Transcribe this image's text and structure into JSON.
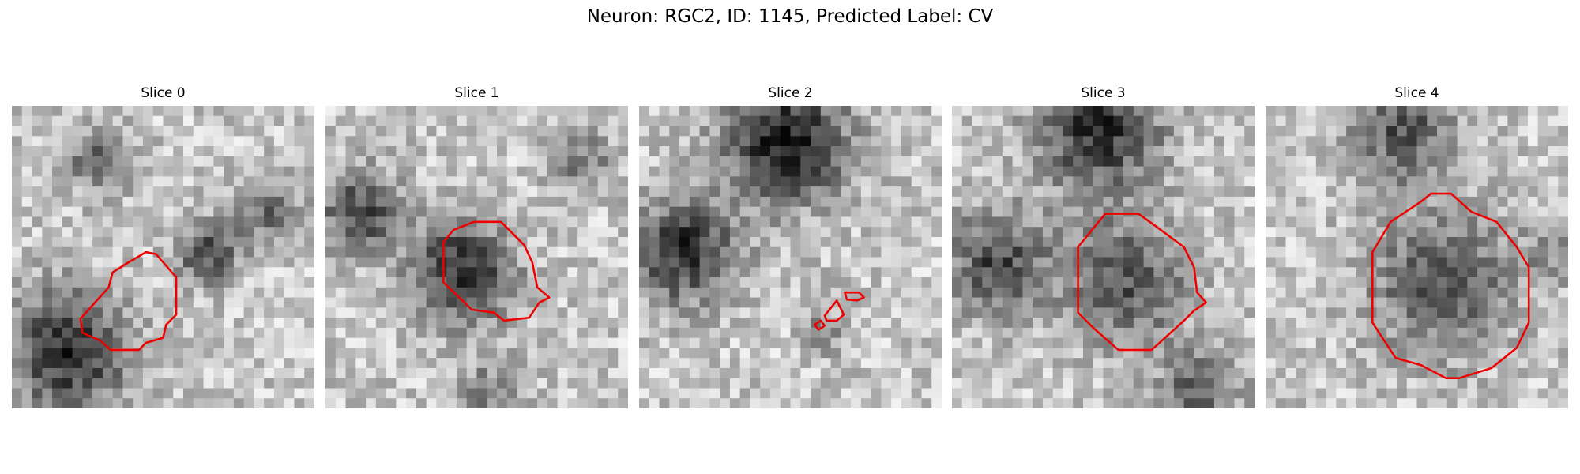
{
  "header": {
    "title": "Neuron: RGC2, ID: 1145, Predicted Label: CV"
  },
  "panels": [
    {
      "label": "Slice 0"
    },
    {
      "label": "Slice 1"
    },
    {
      "label": "Slice 2"
    },
    {
      "label": "Slice 3"
    },
    {
      "label": "Slice 4"
    }
  ]
}
